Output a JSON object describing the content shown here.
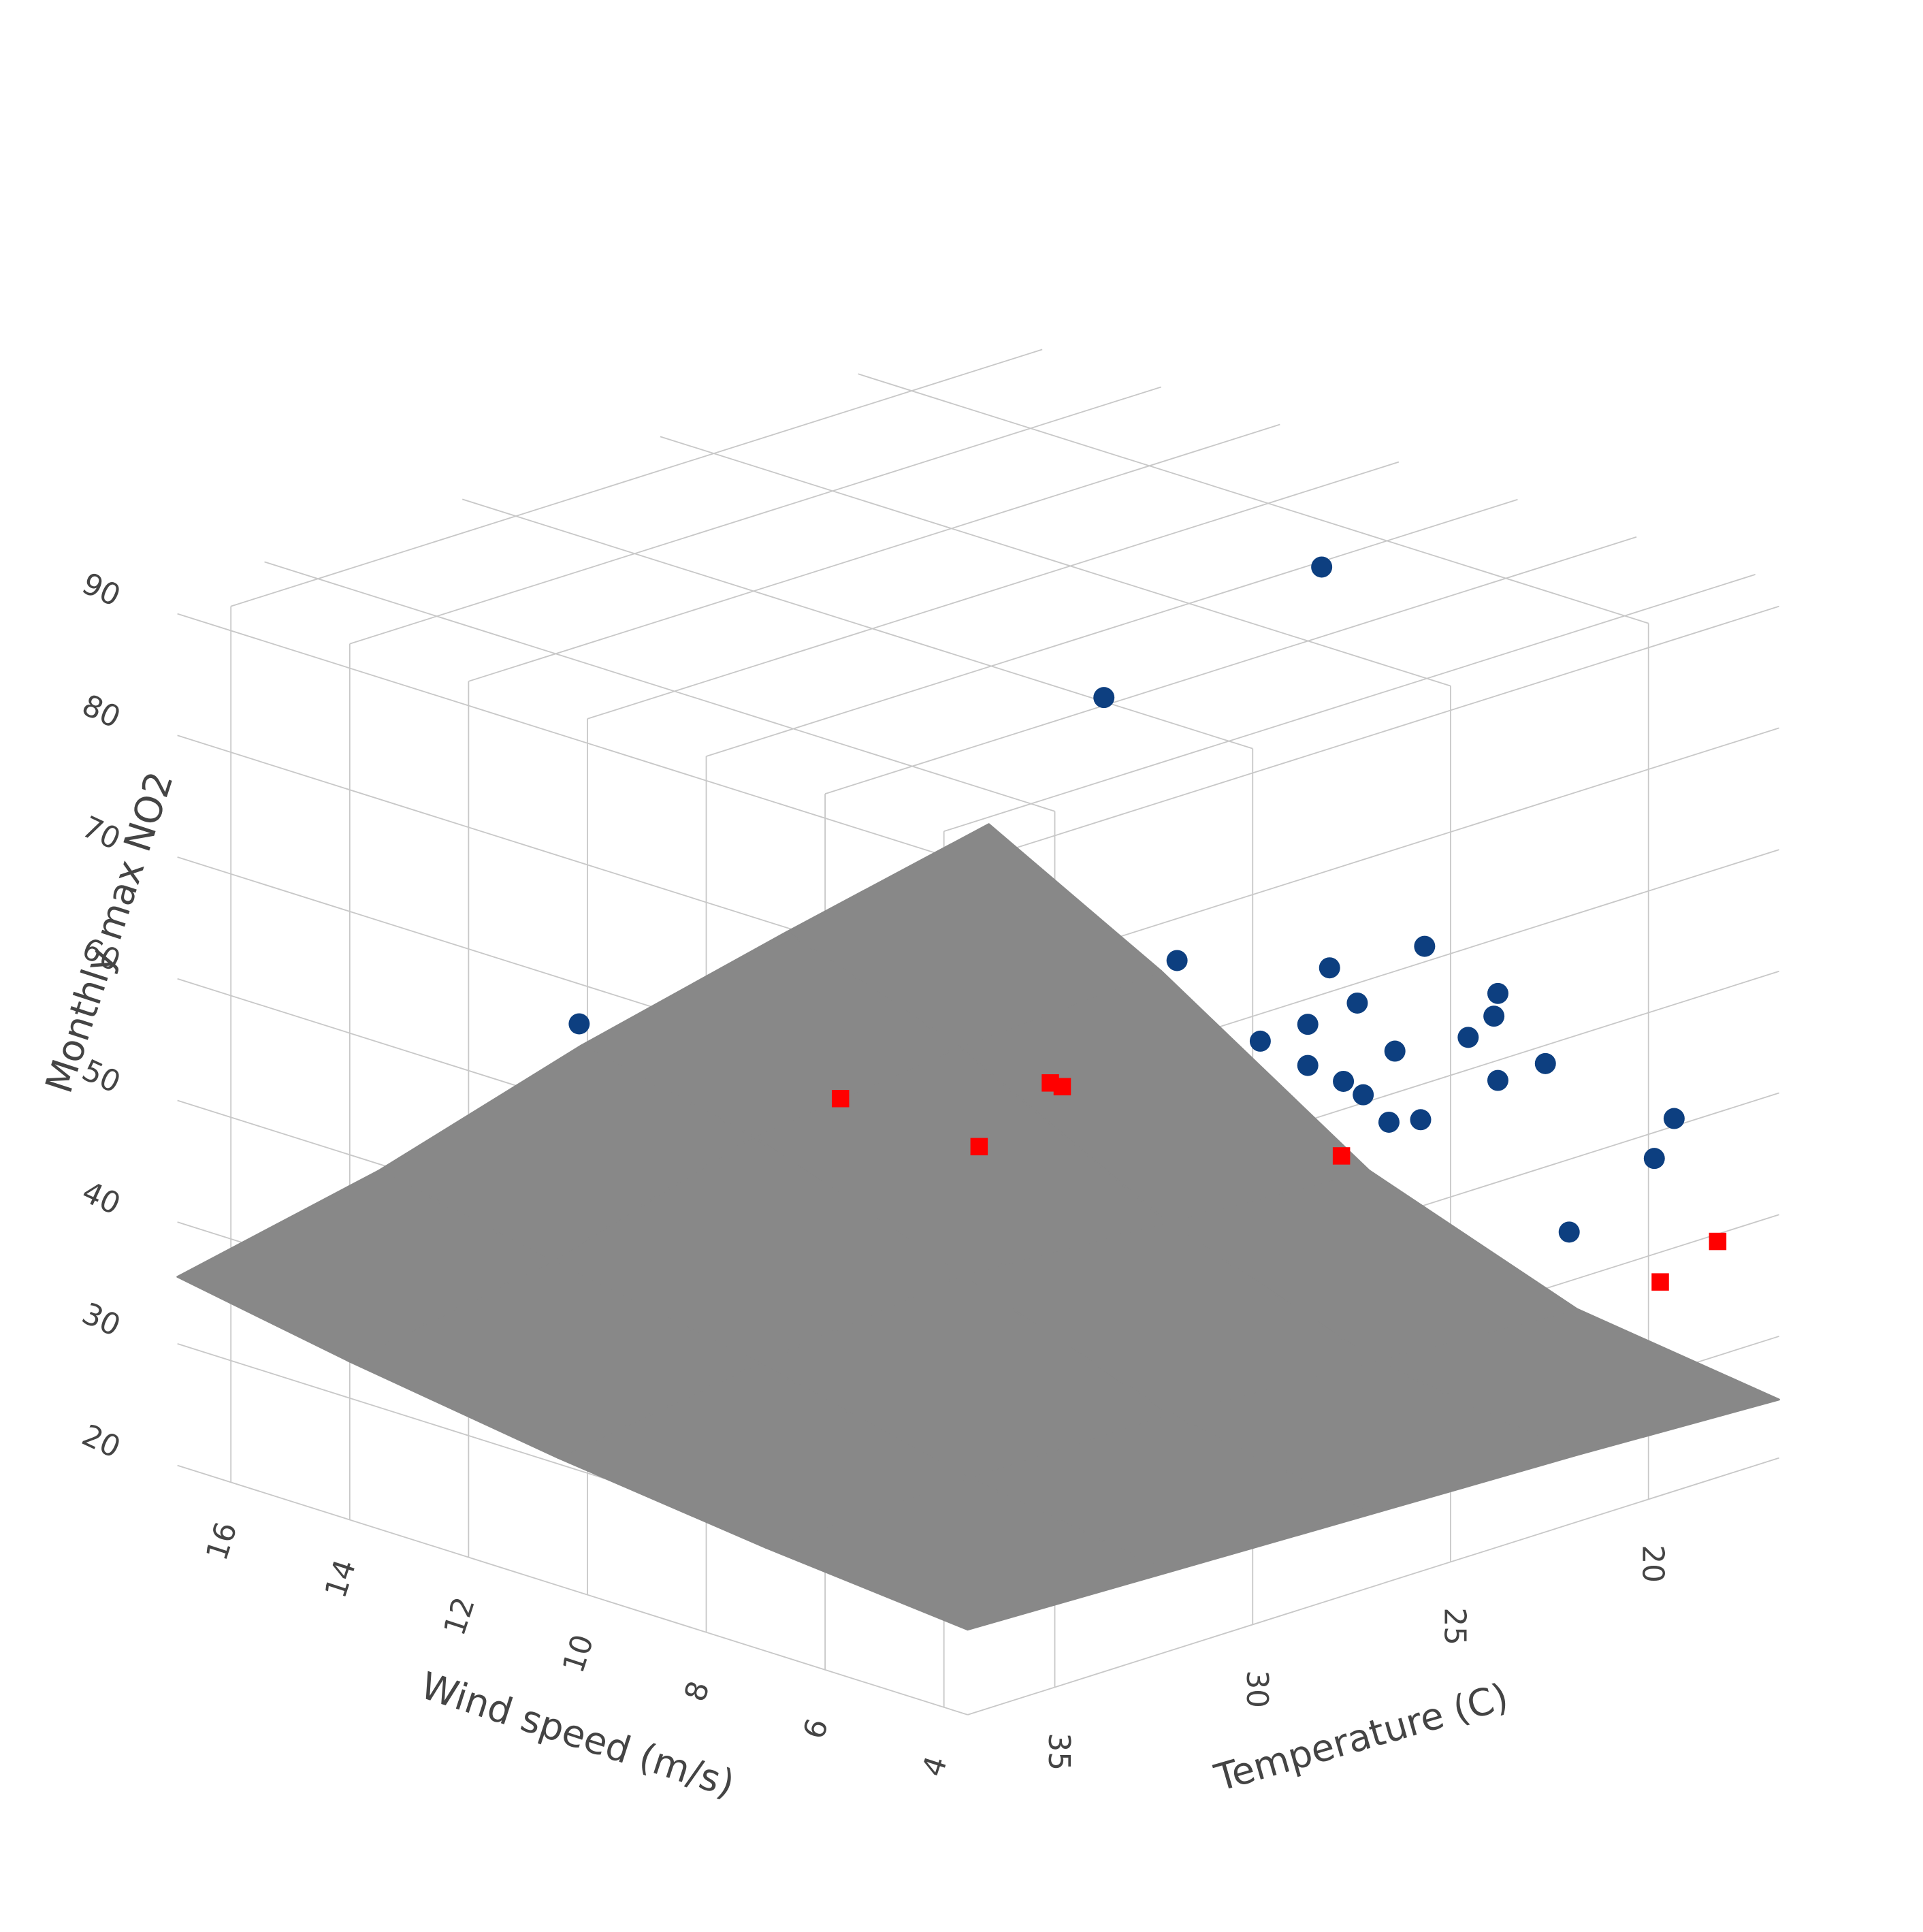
{
  "chart_data": {
    "type": "scatter3d",
    "x_label": "Wind speed (m/s)",
    "y_label": "Temperature (C)",
    "z_label": "Monthly max NO2",
    "xlim": [
      3.6,
      16.9
    ],
    "ylim": [
      16.7,
      37.2
    ],
    "zlim": [
      20,
      92
    ],
    "xticks": [
      4,
      6,
      8,
      10,
      12,
      14,
      16
    ],
    "yticks": [
      20,
      25,
      30,
      35
    ],
    "zticks": [
      20,
      30,
      40,
      50,
      60,
      70,
      80,
      90
    ],
    "grid": true,
    "surface": {
      "color": "#888888",
      "x": [
        3.6,
        7,
        10.5,
        14,
        16.9
      ],
      "y": [
        16.7,
        21.8,
        27,
        32.1,
        37.2
      ],
      "z": [
        [
          24.8,
          27,
          33,
          44,
          51.6
        ],
        [
          25.5,
          28,
          34,
          43,
          48
        ],
        [
          26,
          29,
          35,
          41,
          44
        ],
        [
          26.5,
          29,
          33,
          36,
          39
        ],
        [
          27,
          28.5,
          30.5,
          33,
          35.5
        ]
      ]
    },
    "series": [
      {
        "color": "#0d3f80",
        "symbol": "circle",
        "x": [
          8.5,
          10.1,
          16.2,
          12.2,
          9.1,
          7.9,
          7.0,
          7.4,
          8.9,
          9.4,
          7.7,
          8.6,
          7.0,
          7.6,
          9.6,
          9.2,
          9.0,
          8.5,
          5.1,
          5.5,
          6.2,
          10.0,
          8.7
        ],
        "y": [
          20.9,
          24.0,
          28.1,
          19.0,
          19.8,
          19.2,
          18.7,
          18.2,
          19.4,
          19.9,
          18.4,
          18.9,
          17.5,
          17.8,
          19.6,
          19.3,
          19.1,
          18.4,
          17.1,
          17.0,
          18.1,
          20.2,
          18.9
        ],
        "z": [
          90,
          80,
          48,
          50,
          55,
          58,
          55,
          52,
          52,
          50,
          50,
          48,
          48,
          46,
          46,
          45,
          44,
          42,
          46,
          42,
          36,
          48,
          42
        ]
      },
      {
        "color": "#ff0000",
        "symbol": "square",
        "x": [
          14.6,
          12.8,
          12.6,
          12.4,
          9.5,
          4.7,
          5.4
        ],
        "y": [
          23.9,
          23.1,
          21.6,
          21.6,
          18.9,
          16.6,
          17.0
        ],
        "z": [
          40,
          38,
          42,
          42,
          38,
          36,
          32
        ]
      }
    ]
  }
}
